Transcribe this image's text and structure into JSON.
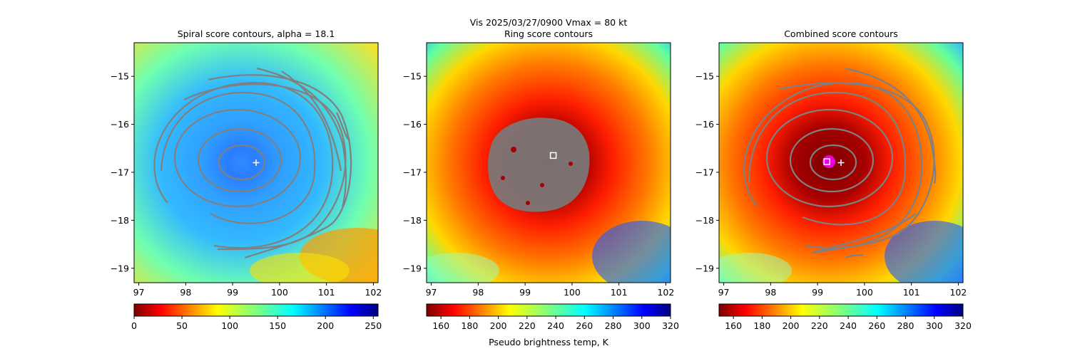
{
  "figure": {
    "suptitle_line1": "Vis  2025/03/27/0900    Vmax = 80 kt"
  },
  "colors": {
    "contour": "#808080",
    "marker_plus": "#ffffff",
    "marker_square": "#ffffff",
    "eye_marker": "#ff00ff"
  },
  "chart_data": [
    {
      "type": "heatmap",
      "title": "Spiral score contours, alpha = 18.1",
      "xlim": [
        96.9,
        102.1
      ],
      "ylim": [
        -19.3,
        -14.3
      ],
      "xticks": [
        97,
        98,
        99,
        100,
        101,
        102
      ],
      "yticks": [
        -15,
        -16,
        -17,
        -18,
        -19
      ],
      "background_field": "pseudo brightness temperature (reversed-jet style)",
      "colormap": "jet_r",
      "colorbar": {
        "range": [
          0,
          255
        ],
        "ticks": [
          0,
          50,
          100,
          150,
          200,
          250
        ],
        "label": ""
      },
      "contours": "spiral score, concentric rings around center",
      "markers": [
        {
          "kind": "plus",
          "x": 99.5,
          "y": -16.8
        }
      ]
    },
    {
      "type": "heatmap",
      "title": "Ring score contours",
      "xlim": [
        96.9,
        102.1
      ],
      "ylim": [
        -19.3,
        -14.3
      ],
      "xticks": [
        97,
        98,
        99,
        100,
        101,
        102
      ],
      "yticks": [
        -15,
        -16,
        -17,
        -18,
        -19
      ],
      "background_field": "pseudo brightness temperature",
      "colormap": "jet_r",
      "colorbar": {
        "range": [
          150,
          320
        ],
        "ticks": [
          160,
          180,
          200,
          220,
          240,
          260,
          280,
          300,
          320
        ],
        "label": "Pseudo brightness temp, K"
      },
      "contours": "ring score, dense filled region around eye",
      "markers": [
        {
          "kind": "square",
          "x": 99.6,
          "y": -16.65
        }
      ]
    },
    {
      "type": "heatmap",
      "title": "Combined score contours",
      "xlim": [
        96.9,
        102.1
      ],
      "ylim": [
        -19.3,
        -14.3
      ],
      "xticks": [
        97,
        98,
        99,
        100,
        101,
        102
      ],
      "yticks": [
        -15,
        -16,
        -17,
        -18,
        -19
      ],
      "background_field": "pseudo brightness temperature",
      "colormap": "jet_r",
      "colorbar": {
        "range": [
          150,
          320
        ],
        "ticks": [
          160,
          180,
          200,
          220,
          240,
          260,
          280,
          300,
          320
        ],
        "label": ""
      },
      "contours": "combined score, concentric rings",
      "markers": [
        {
          "kind": "square",
          "x": 99.2,
          "y": -16.78
        },
        {
          "kind": "plus",
          "x": 99.5,
          "y": -16.8
        }
      ]
    }
  ]
}
